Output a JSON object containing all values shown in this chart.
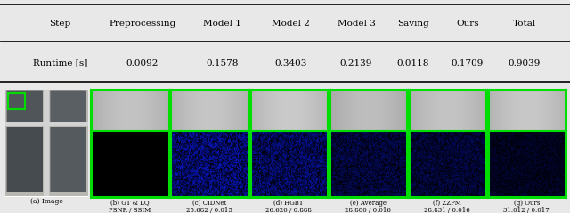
{
  "table": {
    "columns": [
      "Step",
      "Preprocessing",
      "Model 1",
      "Model 2",
      "Model 3",
      "Saving",
      "Ours",
      "Total"
    ],
    "row_label": "Runtime [s]",
    "values": [
      "0.0092",
      "0.1578",
      "0.3403",
      "0.2139",
      "0.0118",
      "0.1709",
      "0.9039"
    ]
  },
  "captions_line1": [
    "(b) GT & LQ",
    "(c) CIDNet",
    "(d) HGBT",
    "(e) Average",
    "(f) ZZPM",
    "(g) Ours"
  ],
  "captions_line2": [
    "PSNR / SSIM",
    "25.682 / 0.015",
    "26.620 / 0.888",
    "28.880 / 0.016",
    "28.831 / 0.016",
    "31.012 / 0.017"
  ],
  "caption_a": "(a) Image",
  "green_border": "#00dd00",
  "bg_color": "#e8e8e8",
  "table_bg": "#ffffff"
}
